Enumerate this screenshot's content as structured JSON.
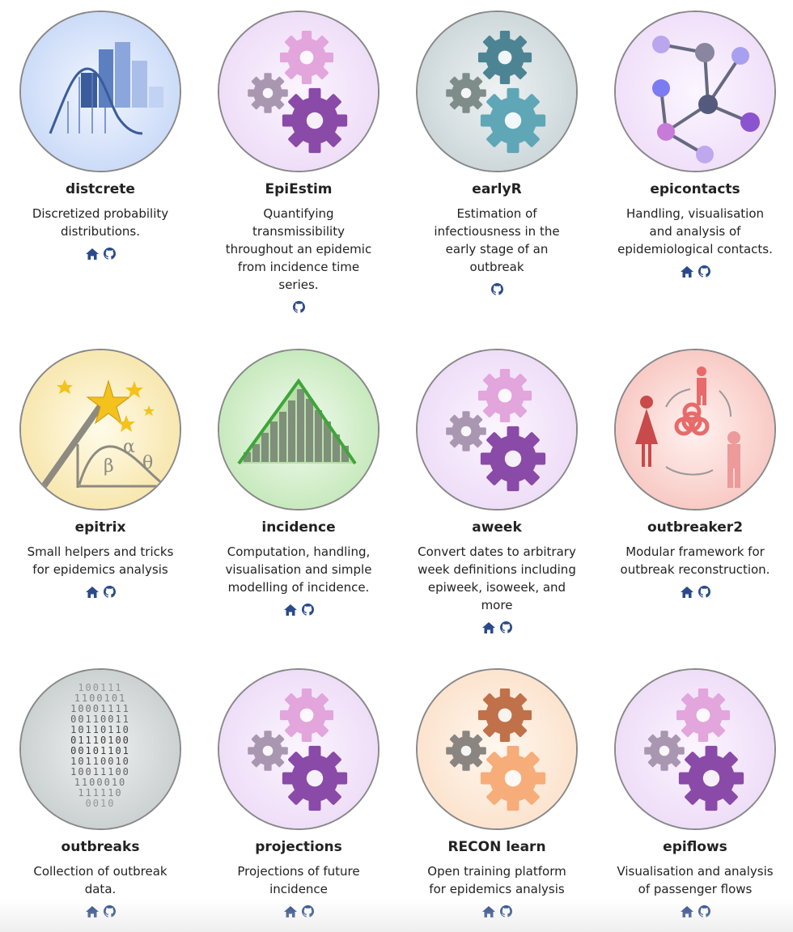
{
  "colors": {
    "link_icon": "#2a4a8a"
  },
  "packages": [
    {
      "name": "distcrete",
      "description": "Discretized probability distributions.",
      "links": [
        "home-icon",
        "github-icon"
      ],
      "art": "distcrete"
    },
    {
      "name": "EpiEstim",
      "description": "Quantifying transmissibility throughout an epidemic from incidence time series.",
      "links": [
        "github-icon"
      ],
      "art": "gears-purple"
    },
    {
      "name": "earlyR",
      "description": "Estimation of infectiousness in the early stage of an outbreak",
      "links": [
        "github-icon"
      ],
      "art": "gears-teal"
    },
    {
      "name": "epicontacts",
      "description": "Handling, visualisation and analysis of epidemiological contacts.",
      "links": [
        "home-icon",
        "github-icon"
      ],
      "art": "network"
    },
    {
      "name": "epitrix",
      "description": "Small helpers and tricks for epidemics analysis",
      "links": [
        "home-icon",
        "github-icon"
      ],
      "art": "wand"
    },
    {
      "name": "incidence",
      "description": "Computation, handling, visualisation and simple modelling of incidence.",
      "links": [
        "home-icon",
        "github-icon"
      ],
      "art": "incidence"
    },
    {
      "name": "aweek",
      "description": "Convert dates to arbitrary week definitions including epiweek, isoweek, and more",
      "links": [
        "home-icon",
        "github-icon"
      ],
      "art": "gears-purple"
    },
    {
      "name": "outbreaker2",
      "description": "Modular framework for outbreak reconstruction.",
      "links": [
        "home-icon",
        "github-icon"
      ],
      "art": "biohazard"
    },
    {
      "name": "outbreaks",
      "description": "Collection of outbreak data.",
      "links": [
        "home-icon",
        "github-icon"
      ],
      "art": "binary"
    },
    {
      "name": "projections",
      "description": "Projections of future incidence",
      "links": [
        "home-icon",
        "github-icon"
      ],
      "art": "gears-purple"
    },
    {
      "name": "RECON learn",
      "description": "Open training platform for epidemics analysis",
      "links": [
        "home-icon",
        "github-icon"
      ],
      "art": "gears-orange"
    },
    {
      "name": "epiflows",
      "description": "Visualisation and analysis of passenger flows",
      "links": [
        "home-icon",
        "github-icon"
      ],
      "art": "gears-purple"
    }
  ]
}
